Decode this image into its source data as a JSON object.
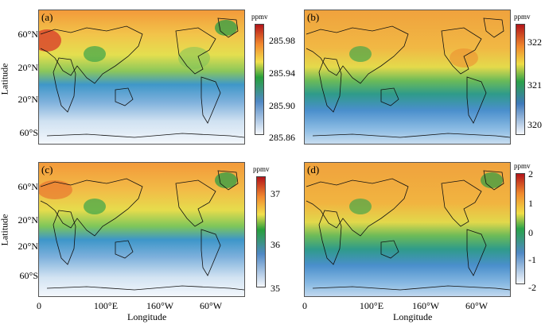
{
  "axes": {
    "ylabel": "Latitude",
    "xlabel": "Longitude",
    "yticks": [
      "60°N",
      "20°N",
      "20°N",
      "60°S"
    ],
    "xticks": [
      "0",
      "100°E",
      "160°W",
      "60°W"
    ]
  },
  "panels": [
    {
      "label": "(a)",
      "unit": "ppmv",
      "ticks": [
        "285.98",
        "285.94",
        "285.90",
        "285.86"
      ]
    },
    {
      "label": "(b)",
      "unit": "ppmv",
      "ticks": [
        "322",
        "321",
        "320"
      ]
    },
    {
      "label": "(c)",
      "unit": "ppmv",
      "ticks": [
        "37",
        "36",
        "35"
      ]
    },
    {
      "label": "(d)",
      "unit": "ppmv",
      "ticks": [
        "2",
        "1",
        "0",
        "-1",
        "-2"
      ]
    }
  ],
  "colors": {
    "red": "#b3141a",
    "orange": "#f28a2f",
    "yellow": "#f2e04c",
    "green": "#27a03c",
    "blue": "#4f88c4",
    "white": "#f5f8fc"
  }
}
